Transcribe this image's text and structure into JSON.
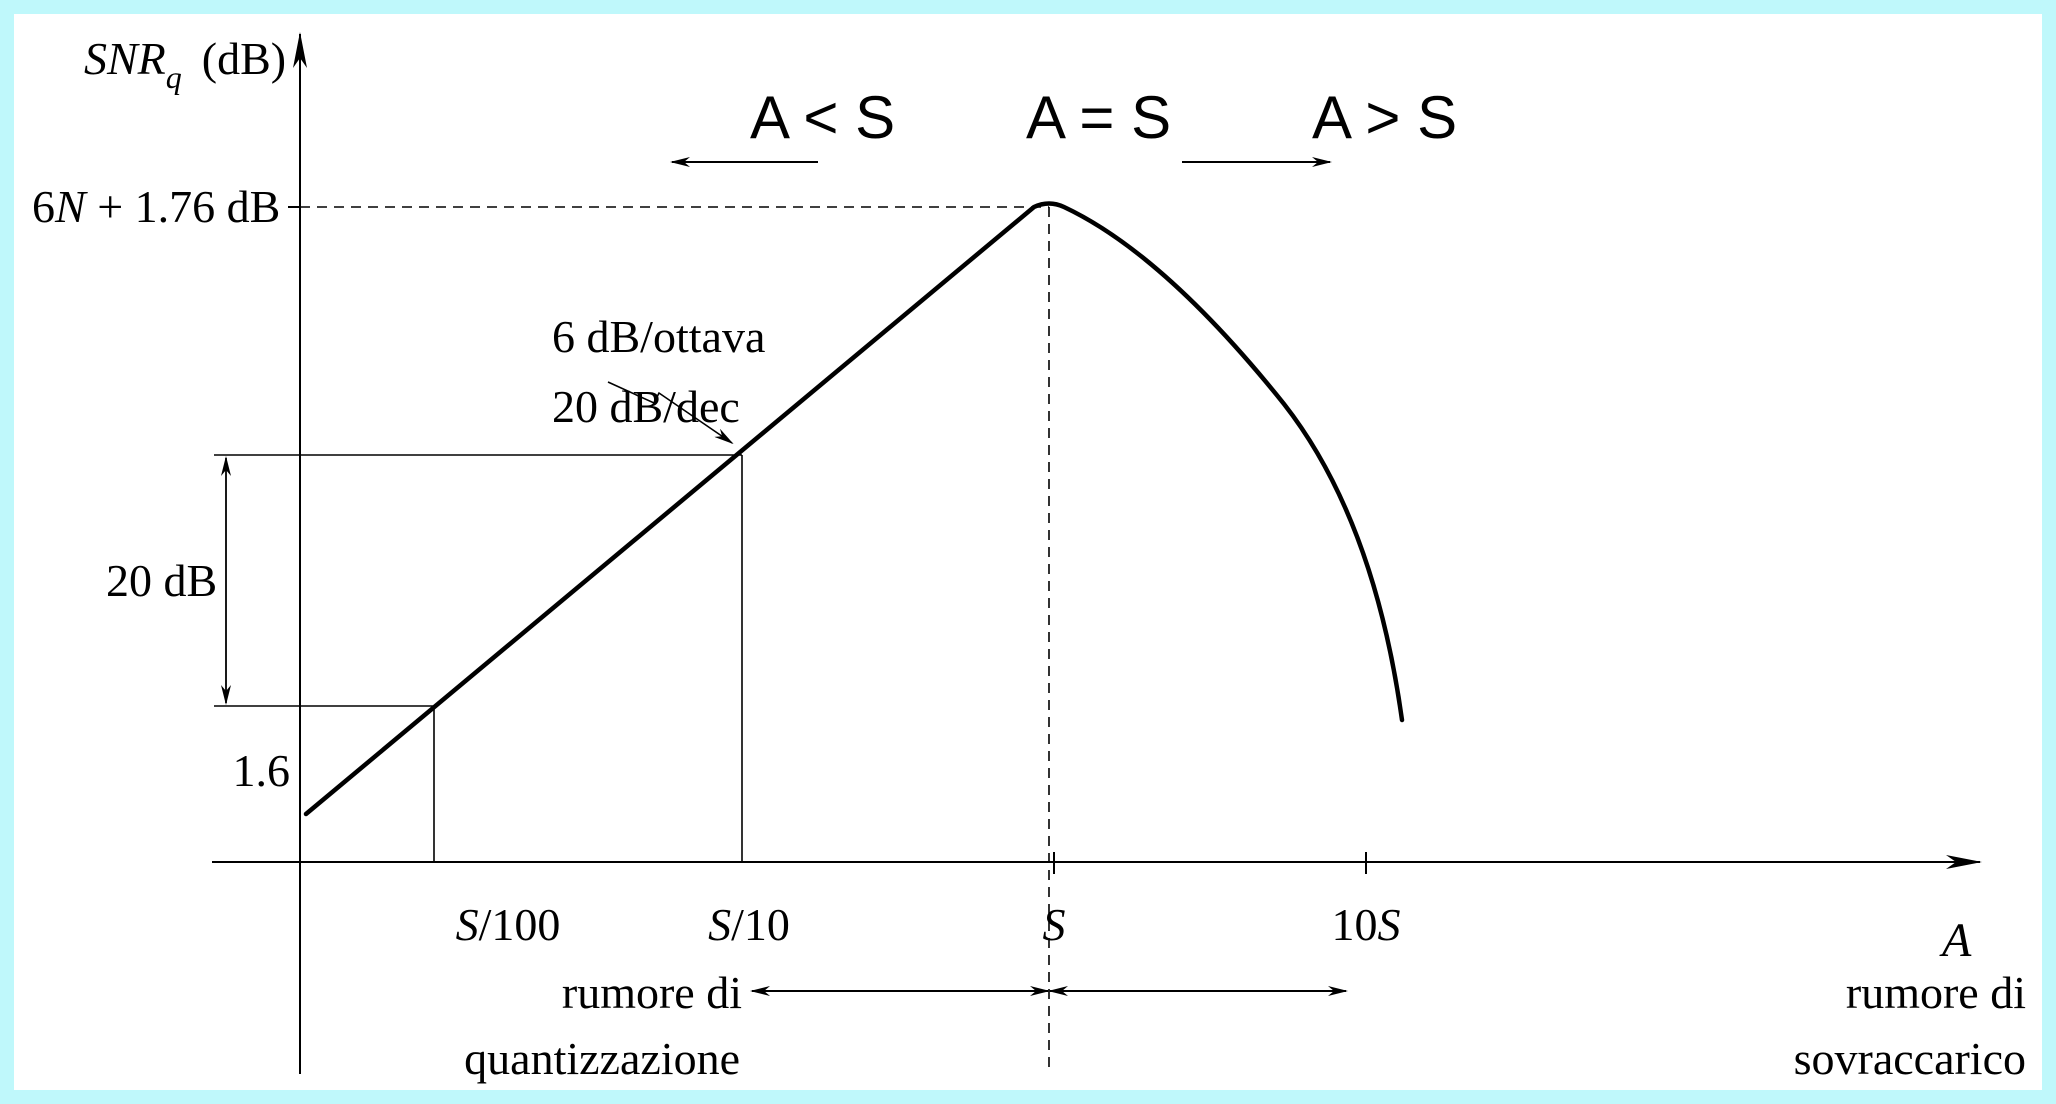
{
  "axes": {
    "y_label_main": "SNR",
    "y_label_sub": "q",
    "y_label_unit": "(dB)",
    "x_label": "A"
  },
  "y_ticks": {
    "peak_pre": "6",
    "peak_var": "N",
    "peak_post": " + 1.76 dB",
    "low": "1.6",
    "span": "20 dB"
  },
  "x_ticks": [
    {
      "var": "S",
      "rest": "/100"
    },
    {
      "var": "S",
      "rest": "/10"
    },
    {
      "var": "S",
      "rest": ""
    },
    {
      "var": "S",
      "pre": "10",
      "rest": ""
    }
  ],
  "regions": {
    "left": "A < S",
    "center": "A = S",
    "right": "A > S"
  },
  "slope_note": {
    "line1": "6 dB/ottava",
    "line2": "20 dB/dec"
  },
  "noise_labels": {
    "quant_line1": "rumore di",
    "quant_line2": "quantizzazione",
    "overload_line1": "rumore di",
    "overload_line2": "sovraccarico"
  },
  "colors": {
    "background": "#bff8fb",
    "plot_bg": "#ffffff",
    "ink": "#000000"
  }
}
